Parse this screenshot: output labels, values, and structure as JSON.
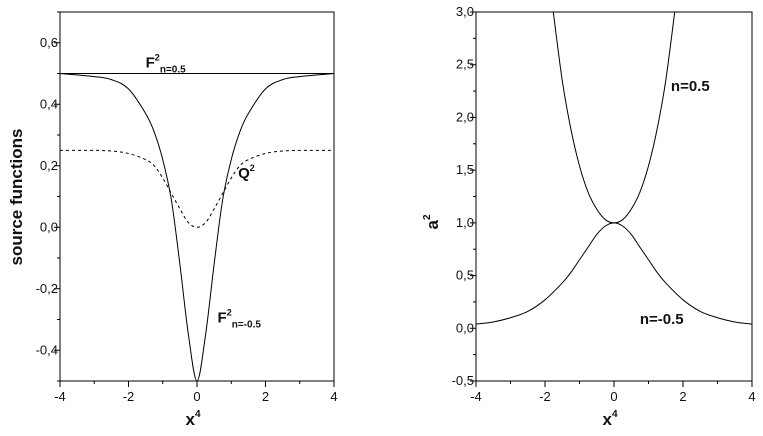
{
  "chart_data": [
    {
      "type": "line",
      "xlabel": "x",
      "xlabel_sup": "4",
      "ylabel": "source functions",
      "xlim": [
        -4,
        4
      ],
      "ylim": [
        -0.5,
        0.7
      ],
      "x_ticks": [
        -4,
        -2,
        0,
        2,
        4
      ],
      "x_tick_labels": [
        "-4",
        "-2",
        "0",
        "2",
        "4"
      ],
      "y_ticks": [
        -0.4,
        -0.2,
        0.0,
        0.2,
        0.4,
        0.6
      ],
      "y_tick_labels": [
        "-0,4",
        "-0,2",
        "0,0",
        "0,2",
        "0,4",
        "0,6"
      ],
      "grid": false,
      "series": [
        {
          "style": "solid",
          "x": [
            -4,
            -3,
            -2.5,
            -2,
            -1.5,
            -1.25,
            -1,
            -0.75,
            -0.5,
            -0.25,
            0,
            0.25,
            0.5,
            0.75,
            1,
            1.25,
            1.5,
            2,
            2.5,
            3,
            4
          ],
          "y": [
            0.5,
            0.49,
            0.48,
            0.45,
            0.37,
            0.31,
            0.22,
            0.09,
            -0.12,
            -0.35,
            -0.5,
            -0.35,
            -0.12,
            0.09,
            0.22,
            0.31,
            0.37,
            0.45,
            0.48,
            0.49,
            0.5
          ]
        },
        {
          "style": "dashed",
          "x": [
            -4,
            -3,
            -2.5,
            -2,
            -1.5,
            -1.25,
            -1,
            -0.75,
            -0.5,
            -0.25,
            0,
            0.25,
            0.5,
            0.75,
            1,
            1.25,
            1.5,
            2,
            2.5,
            3,
            4
          ],
          "y": [
            0.25,
            0.25,
            0.248,
            0.24,
            0.22,
            0.2,
            0.16,
            0.11,
            0.06,
            0.015,
            0.0,
            0.015,
            0.06,
            0.11,
            0.16,
            0.2,
            0.22,
            0.24,
            0.248,
            0.25,
            0.25
          ]
        },
        {
          "style": "solid",
          "x": [
            -4,
            4
          ],
          "y": [
            0.5,
            0.5
          ]
        }
      ],
      "annotations": [
        {
          "base": "F",
          "sup": "2",
          "sub": "n=0.5",
          "x": -1.5,
          "y": 0.52
        },
        {
          "base": "Q",
          "sup": "2",
          "sub": "",
          "x": 1.2,
          "y": 0.16
        },
        {
          "base": "F",
          "sup": "2",
          "sub": "n=-0.5",
          "x": 0.6,
          "y": -0.31
        }
      ]
    },
    {
      "type": "line",
      "xlabel": "x",
      "xlabel_sup": "4",
      "ylabel": "a",
      "ylabel_sup": "2",
      "xlim": [
        -4,
        4
      ],
      "ylim": [
        -0.5,
        3.0
      ],
      "x_ticks": [
        -4,
        -2,
        0,
        2,
        4
      ],
      "x_tick_labels": [
        "-4",
        "-2",
        "0",
        "2",
        "4"
      ],
      "y_ticks": [
        -0.5,
        0.0,
        0.5,
        1.0,
        1.5,
        2.0,
        2.5,
        3.0
      ],
      "y_tick_labels": [
        "-0,5",
        "0,0",
        "0,5",
        "1,0",
        "1,5",
        "2,0",
        "2,5",
        "3,0"
      ],
      "grid": false,
      "series": [
        {
          "style": "solid",
          "x": [
            -1.76,
            -1.5,
            -1.25,
            -1,
            -0.75,
            -0.5,
            -0.25,
            0,
            0.25,
            0.5,
            0.75,
            1,
            1.25,
            1.5,
            1.76
          ],
          "y": [
            3.0,
            2.35,
            1.89,
            1.54,
            1.29,
            1.13,
            1.03,
            1.0,
            1.03,
            1.13,
            1.29,
            1.54,
            1.89,
            2.35,
            3.0
          ]
        },
        {
          "style": "solid",
          "x": [
            -4,
            -3.5,
            -3,
            -2.5,
            -2,
            -1.5,
            -1.25,
            -1,
            -0.75,
            -0.5,
            -0.25,
            0,
            0.25,
            0.5,
            0.75,
            1,
            1.25,
            1.5,
            2,
            2.5,
            3,
            3.5,
            4
          ],
          "y": [
            0.04,
            0.06,
            0.1,
            0.16,
            0.27,
            0.43,
            0.53,
            0.65,
            0.77,
            0.89,
            0.97,
            1.0,
            0.97,
            0.89,
            0.77,
            0.65,
            0.53,
            0.43,
            0.27,
            0.16,
            0.1,
            0.06,
            0.04
          ]
        }
      ],
      "annotations": [
        {
          "text": "n=0.5",
          "x": 1.65,
          "y": 2.25
        },
        {
          "text": "n=-0.5",
          "x": 0.75,
          "y": 0.04
        }
      ]
    }
  ]
}
